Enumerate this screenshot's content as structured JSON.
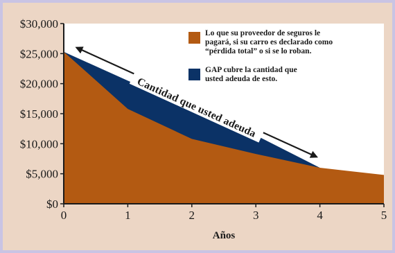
{
  "chart_data": {
    "type": "area",
    "x": [
      0,
      1,
      2,
      3,
      4,
      5
    ],
    "xlabel": "Años",
    "ylim": [
      0,
      30000
    ],
    "yticks": [
      {
        "value": 0,
        "label": "$0"
      },
      {
        "value": 5000,
        "label": "$5,000"
      },
      {
        "value": 10000,
        "label": "$10,000"
      },
      {
        "value": 15000,
        "label": "$15,000"
      },
      {
        "value": 20000,
        "label": "$20,000"
      },
      {
        "value": 25000,
        "label": "$25,000"
      },
      {
        "value": 30000,
        "label": "$30,000"
      }
    ],
    "series": [
      {
        "key": "insurance",
        "color": "#b35a12",
        "legend": [
          "Lo que su proveedor de seguros le",
          "pagará, si su carro es declarado como",
          "“pérdida total” o si se lo roban."
        ],
        "points": [
          [
            0,
            25300
          ],
          [
            1,
            15800
          ],
          [
            2,
            10800
          ],
          [
            3,
            8300
          ],
          [
            4,
            6000
          ],
          [
            5,
            4800
          ]
        ]
      },
      {
        "key": "gap",
        "color": "#0b3266",
        "legend": [
          "GAP cubre la cantidad que",
          "usted adeuda de esto."
        ],
        "points": [
          [
            0,
            25300
          ],
          [
            1,
            20500
          ],
          [
            2,
            15900
          ],
          [
            3,
            11400
          ],
          [
            4,
            6000
          ]
        ]
      }
    ],
    "annotation": {
      "text": "Cantidad que usted adeuda",
      "from": [
        0.2,
        26000
      ],
      "to": [
        3.95,
        7800
      ]
    },
    "grid": false,
    "legend_position": "top-right"
  }
}
